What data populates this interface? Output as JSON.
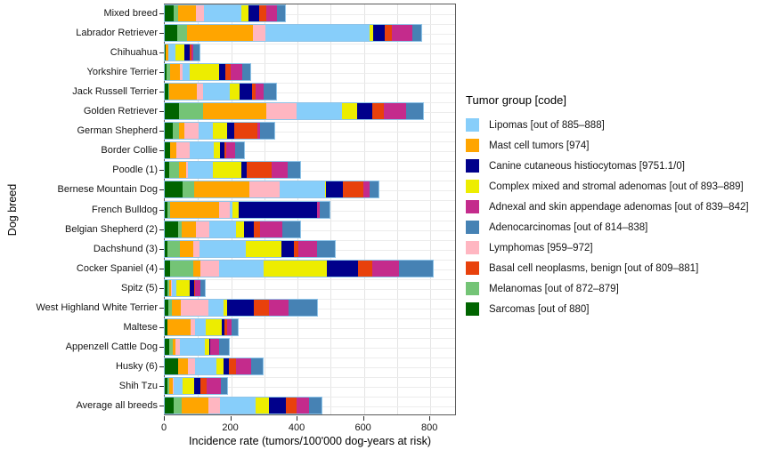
{
  "figure": {
    "y_axis_title": "Dog breed",
    "x_axis_title": "Incidence rate (tumors/100'000 dog-years at risk)"
  },
  "legend": {
    "title": "Tumor group [code]",
    "position": "right",
    "items": [
      {
        "label": "Lipomas [out of 885–888]",
        "color": "#87CEFA"
      },
      {
        "label": "Mast cell tumors [974]",
        "color": "#FFA500"
      },
      {
        "label": "Canine cutaneous histiocytomas [9751.1/0]",
        "color": "#00008B"
      },
      {
        "label": "Complex mixed and stromal adenomas [out of 893–889]",
        "color": "#EDED00"
      },
      {
        "label": "Adnexal and skin appendage adenomas [out of 839–842]",
        "color": "#C42B8C"
      },
      {
        "label": "Adenocarcinomas [out of 814–838]",
        "color": "#4682B4"
      },
      {
        "label": "Lymphomas [959–972]",
        "color": "#FFB6C1"
      },
      {
        "label": "Basal cell neoplasms, benign [out of 809–881]",
        "color": "#E8410C"
      },
      {
        "label": "Melanomas [out of 872–879]",
        "color": "#74C476"
      },
      {
        "label": "Sarcomas [out of 880]",
        "color": "#006400"
      }
    ]
  },
  "chart_data": {
    "type": "bar",
    "variant": "horizontal-stacked",
    "title": "",
    "xlabel": "Incidence rate (tumors/100'000 dog-years at risk)",
    "ylabel": "Dog breed",
    "xlim": [
      0,
      880
    ],
    "x_ticks": [
      0,
      200,
      400,
      600,
      800
    ],
    "grid": true,
    "categories": [
      "Mixed breed",
      "Labrador Retriever",
      "Chihuahua",
      "Yorkshire Terrier",
      "Jack Russell Terrier",
      "Golden Retriever",
      "German Shepherd",
      "Border Collie",
      "Poodle (1)",
      "Bernese Mountain Dog",
      "French Bulldog",
      "Belgian Shepherd (2)",
      "Dachshund (3)",
      "Cocker Spaniel (4)",
      "Spitz (5)",
      "West Highland White Terrier",
      "Maltese",
      "Appenzell Cattle Dog",
      "Husky (6)",
      "Shih Tzu",
      "Average all breeds"
    ],
    "stack_order_note": "series listed in stacking order from x=0 outward",
    "series": [
      {
        "name": "Sarcomas",
        "color": "#006400",
        "values": [
          27,
          38,
          3,
          5,
          11,
          43,
          25,
          16,
          14,
          54,
          9,
          41,
          9,
          16,
          9,
          12,
          9,
          14,
          41,
          9,
          27
        ]
      },
      {
        "name": "Melanomas",
        "color": "#74C476",
        "values": [
          14,
          30,
          0,
          11,
          3,
          72,
          18,
          0,
          29,
          34,
          7,
          9,
          36,
          70,
          4,
          9,
          0,
          9,
          0,
          5,
          23
        ]
      },
      {
        "name": "Mast cell tumors",
        "color": "#FFA500",
        "values": [
          54,
          199,
          9,
          29,
          83,
          192,
          16,
          20,
          22,
          166,
          148,
          45,
          41,
          21,
          5,
          27,
          68,
          9,
          29,
          9,
          81
        ]
      },
      {
        "name": "Lymphomas",
        "color": "#FFB6C1",
        "values": [
          24,
          36,
          0,
          9,
          18,
          89,
          42,
          38,
          6,
          92,
          31,
          38,
          18,
          56,
          4,
          83,
          13,
          13,
          20,
          5,
          36
        ]
      },
      {
        "name": "Lipomas",
        "color": "#87CEFA",
        "values": [
          112,
          313,
          20,
          21,
          81,
          139,
          45,
          74,
          74,
          136,
          8,
          81,
          140,
          134,
          14,
          47,
          34,
          77,
          65,
          25,
          107
        ]
      },
      {
        "name": "Complex mixed and stromal adenomas",
        "color": "#EDED00",
        "values": [
          22,
          11,
          27,
          89,
          29,
          45,
          42,
          18,
          87,
          5,
          21,
          25,
          107,
          191,
          40,
          11,
          49,
          11,
          21,
          36,
          39
        ]
      },
      {
        "name": "Canine cutaneous histiocytomas",
        "color": "#00008B",
        "values": [
          31,
          36,
          16,
          18,
          38,
          45,
          21,
          14,
          16,
          50,
          235,
          29,
          38,
          94,
          12,
          79,
          6,
          4,
          18,
          18,
          52
        ]
      },
      {
        "name": "Basal cell neoplasms, benign",
        "color": "#E8410C",
        "values": [
          22,
          21,
          5,
          18,
          12,
          36,
          69,
          5,
          73,
          61,
          0,
          18,
          13,
          42,
          4,
          45,
          9,
          0,
          21,
          18,
          31
        ]
      },
      {
        "name": "Adnexal and skin appendage adenomas",
        "color": "#C42B8C",
        "values": [
          31,
          63,
          5,
          33,
          24,
          67,
          10,
          27,
          50,
          18,
          7,
          67,
          56,
          81,
          16,
          61,
          14,
          27,
          45,
          43,
          38
        ]
      },
      {
        "name": "Adenocarcinomas",
        "color": "#4682B4",
        "values": [
          25,
          27,
          21,
          25,
          36,
          49,
          42,
          27,
          36,
          29,
          30,
          54,
          54,
          103,
          13,
          84,
          18,
          30,
          34,
          20,
          38
        ]
      }
    ]
  }
}
